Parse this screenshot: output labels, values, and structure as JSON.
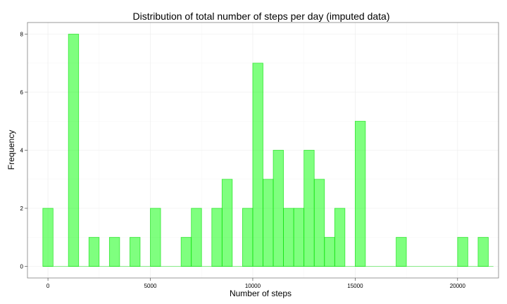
{
  "chart_data": {
    "type": "bar",
    "title": "Distribution of total number of steps per day (imputed data)",
    "xlabel": "Number of steps",
    "ylabel": "Frequency",
    "xlim": [
      -1000,
      22000
    ],
    "ylim": [
      -0.4,
      8.4
    ],
    "x_ticks": [
      0,
      5000,
      10000,
      15000,
      20000
    ],
    "y_ticks": [
      0,
      2,
      4,
      6,
      8
    ],
    "bin_width": 500,
    "bin_start": -250,
    "bin_end": 21750,
    "bins": [
      {
        "x": 0,
        "count": 2
      },
      {
        "x": 1250,
        "count": 8
      },
      {
        "x": 2250,
        "count": 1
      },
      {
        "x": 3250,
        "count": 1
      },
      {
        "x": 4250,
        "count": 1
      },
      {
        "x": 5250,
        "count": 2
      },
      {
        "x": 6750,
        "count": 1
      },
      {
        "x": 7250,
        "count": 2
      },
      {
        "x": 8250,
        "count": 2
      },
      {
        "x": 8750,
        "count": 3
      },
      {
        "x": 9750,
        "count": 2
      },
      {
        "x": 10250,
        "count": 7
      },
      {
        "x": 10750,
        "count": 3
      },
      {
        "x": 11250,
        "count": 4
      },
      {
        "x": 11750,
        "count": 2
      },
      {
        "x": 12250,
        "count": 2
      },
      {
        "x": 12750,
        "count": 4
      },
      {
        "x": 13250,
        "count": 3
      },
      {
        "x": 13750,
        "count": 1
      },
      {
        "x": 14250,
        "count": 2
      },
      {
        "x": 15250,
        "count": 5
      },
      {
        "x": 17250,
        "count": 1
      },
      {
        "x": 20250,
        "count": 1
      },
      {
        "x": 21250,
        "count": 1
      }
    ],
    "grid": true,
    "colors": {
      "bar_fill": "#00ff00",
      "bar_fill_opacity": 0.5,
      "bar_stroke": "#00dd00",
      "panel_border": "#7f7f7f",
      "grid": "#ebebeb"
    }
  }
}
